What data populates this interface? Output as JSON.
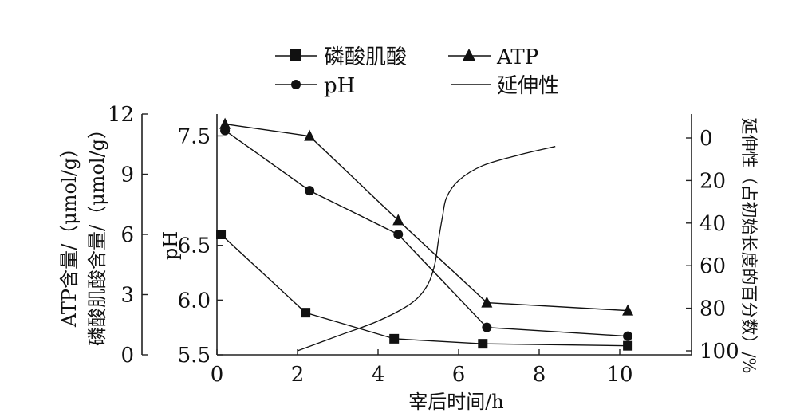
{
  "chart_data": {
    "type": "line",
    "title": "",
    "xlabel": "宰后时间/h",
    "xlim": [
      0,
      12
    ],
    "xticks": [
      0,
      2,
      4,
      6,
      8,
      10
    ],
    "left_outer_axis": {
      "label_line1": "ATP含量/（μmol/g）",
      "label_line2": "磷酸肌酸含量/（μmol/g）",
      "ylim": [
        0,
        12
      ],
      "ticks": [
        0,
        3,
        6,
        9,
        12
      ]
    },
    "left_inner_axis": {
      "label": "pH",
      "ylim": [
        5.5,
        7.7
      ],
      "ticks": [
        5.5,
        6.0,
        6.5,
        7.5
      ],
      "tick_labels": [
        "5.5",
        "6.0",
        "6.5",
        "7.5"
      ]
    },
    "right_axis": {
      "label": "延伸性（占初始长度的百分数）/%",
      "ylim": [
        0,
        100
      ],
      "inverted": true,
      "ticks": [
        0,
        20,
        40,
        60,
        80,
        100
      ]
    },
    "legend": {
      "position": "top",
      "entries": [
        {
          "label": "磷酸肌酸",
          "marker": "square"
        },
        {
          "label": "ATP",
          "marker": "triangle"
        },
        {
          "label": "pH",
          "marker": "circle"
        },
        {
          "label": "延伸性",
          "marker": "none"
        }
      ]
    },
    "series": [
      {
        "name": "磷酸肌酸",
        "axis": "left_outer",
        "marker": "square",
        "x": [
          0.1,
          2.2,
          4.4,
          6.6,
          10.2
        ],
        "y": [
          6.0,
          2.1,
          0.8,
          0.55,
          0.45
        ]
      },
      {
        "name": "ATP",
        "axis": "left_outer",
        "marker": "triangle",
        "x": [
          0.2,
          2.3,
          4.5,
          6.7,
          10.2
        ],
        "y": [
          11.5,
          10.9,
          6.7,
          2.6,
          2.2
        ]
      },
      {
        "name": "pH",
        "axis": "left_inner",
        "marker": "circle",
        "x": [
          0.2,
          2.3,
          4.5,
          6.7,
          10.2
        ],
        "y": [
          7.55,
          7.0,
          6.6,
          5.75,
          5.67
        ]
      },
      {
        "name": "延伸性",
        "axis": "right",
        "marker": "none",
        "x": [
          2.0,
          3.0,
          4.0,
          4.8,
          5.2,
          5.4,
          5.5,
          5.6,
          5.7,
          6.0,
          6.6,
          7.5,
          8.4
        ],
        "y": [
          100,
          93,
          86,
          78,
          70,
          60,
          48,
          37,
          28,
          20,
          13,
          8,
          4
        ]
      }
    ]
  }
}
